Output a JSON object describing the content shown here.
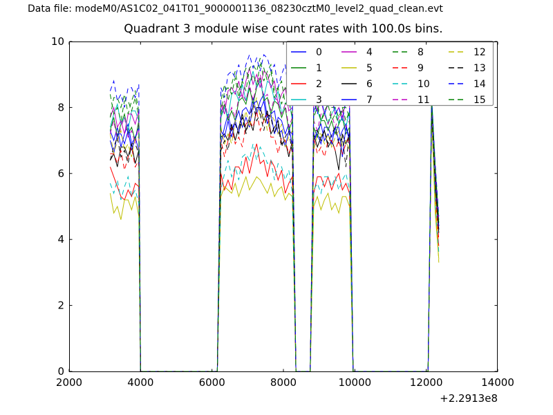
{
  "header": {
    "text": "Data file: modeM0/AS1C02_041T01_9000001136_08230cztM0_level2_quad_clean.evt"
  },
  "chart_data": {
    "type": "line",
    "title": "Quadrant 3 module wise count rates with 100.0s bins.",
    "xlabel": "",
    "ylabel": "",
    "xlim": [
      2000,
      14000
    ],
    "ylim": [
      0,
      10
    ],
    "xticks": [
      2000,
      4000,
      6000,
      8000,
      10000,
      12000,
      14000
    ],
    "yticks": [
      0,
      2,
      4,
      6,
      8,
      10
    ],
    "x_offset_label": "+2.2913e8",
    "grid": false,
    "legend": {
      "position": "upper right",
      "columns": 4
    },
    "x": [
      3150,
      3250,
      3350,
      3450,
      3550,
      3650,
      3750,
      3850,
      3950,
      4000,
      6150,
      6250,
      6350,
      6450,
      6550,
      6650,
      6750,
      6850,
      6950,
      7050,
      7150,
      7250,
      7350,
      7450,
      7550,
      7650,
      7750,
      7850,
      7950,
      8050,
      8150,
      8250,
      8350,
      8750,
      8850,
      8950,
      9050,
      9150,
      9250,
      9350,
      9450,
      9550,
      9650,
      9750,
      9850,
      9950,
      12050,
      12150,
      12250,
      12350
    ],
    "series": [
      {
        "name": "0",
        "color": "#0000ff",
        "style": "solid",
        "values": [
          7.3,
          7.0,
          7.4,
          6.8,
          7.2,
          7.5,
          6.9,
          7.1,
          6.7,
          0,
          0,
          6.9,
          7.4,
          7.8,
          7.3,
          7.6,
          7.2,
          7.9,
          8.0,
          7.8,
          8.3,
          7.8,
          8.2,
          8.4,
          7.7,
          7.8,
          7.2,
          7.7,
          7.6,
          7.2,
          7.5,
          6.8,
          0,
          0,
          7.0,
          7.2,
          6.9,
          7.4,
          7.4,
          7.1,
          7.4,
          7.0,
          7.3,
          7.5,
          7.0,
          0,
          0,
          8.0,
          5.8,
          4.4
        ]
      },
      {
        "name": "1",
        "color": "#008000",
        "style": "solid",
        "values": [
          7.3,
          7.7,
          7.1,
          7.5,
          7.8,
          7.2,
          7.4,
          7.0,
          7.6,
          0,
          0,
          7.7,
          8.1,
          7.6,
          7.9,
          7.6,
          8.2,
          8.3,
          8.1,
          8.6,
          8.1,
          8.6,
          8.9,
          8.2,
          8.3,
          7.8,
          8.2,
          8.1,
          7.7,
          8.0,
          7.3,
          7.6,
          0,
          0,
          7.4,
          7.1,
          7.6,
          7.6,
          7.3,
          7.6,
          7.2,
          7.5,
          7.7,
          7.2,
          7.4,
          0,
          0,
          8.2,
          6.0,
          4.5
        ]
      },
      {
        "name": "2",
        "color": "#ff0000",
        "style": "solid",
        "values": [
          6.2,
          5.9,
          5.6,
          5.3,
          5.2,
          5.5,
          5.3,
          5.7,
          5.6,
          0,
          0,
          6.0,
          5.5,
          5.8,
          5.5,
          6.2,
          6.2,
          6.0,
          6.5,
          6.0,
          6.5,
          6.9,
          6.3,
          6.4,
          5.9,
          6.4,
          6.2,
          5.8,
          6.1,
          5.4,
          5.7,
          5.9,
          0,
          0,
          5.4,
          5.9,
          5.9,
          5.6,
          5.9,
          5.5,
          5.8,
          6.0,
          5.5,
          5.7,
          5.4,
          0,
          0,
          7.9,
          5.0,
          3.8
        ]
      },
      {
        "name": "3",
        "color": "#00bfbf",
        "style": "solid",
        "values": [
          7.4,
          7.8,
          8.1,
          7.5,
          7.7,
          7.3,
          7.9,
          7.9,
          7.6,
          0,
          0,
          7.7,
          8.0,
          7.7,
          8.4,
          8.5,
          8.2,
          8.7,
          8.2,
          8.7,
          9.1,
          8.6,
          8.8,
          8.3,
          8.8,
          8.7,
          8.2,
          8.5,
          7.8,
          8.1,
          8.3,
          7.6,
          0,
          0,
          7.9,
          7.9,
          7.6,
          7.9,
          7.5,
          7.8,
          8.0,
          7.5,
          7.7,
          7.4,
          7.9,
          0,
          0,
          8.4,
          6.2,
          4.3
        ]
      },
      {
        "name": "4",
        "color": "#bf00bf",
        "style": "solid",
        "values": [
          7.7,
          8.0,
          7.4,
          7.6,
          7.2,
          7.8,
          7.8,
          7.5,
          7.9,
          0,
          0,
          8.1,
          7.8,
          8.5,
          8.6,
          8.4,
          8.8,
          8.3,
          8.8,
          9.2,
          8.7,
          9.0,
          8.6,
          9.1,
          9.0,
          8.6,
          8.8,
          8.1,
          8.4,
          8.6,
          7.9,
          8.0,
          0,
          0,
          8.2,
          7.9,
          8.2,
          7.8,
          8.1,
          8.3,
          7.8,
          8.0,
          7.7,
          8.2,
          8.2,
          0,
          0,
          8.1,
          6.1,
          4.6
        ]
      },
      {
        "name": "5",
        "color": "#bfbf00",
        "style": "solid",
        "values": [
          5.4,
          4.8,
          5.0,
          4.6,
          5.2,
          5.2,
          4.9,
          5.3,
          4.7,
          0,
          0,
          5.3,
          5.6,
          5.5,
          5.4,
          5.7,
          5.3,
          5.6,
          5.9,
          5.5,
          5.7,
          5.9,
          5.8,
          5.6,
          5.4,
          5.7,
          5.3,
          5.5,
          5.6,
          5.2,
          5.4,
          5.3,
          0,
          0,
          5.0,
          5.3,
          4.9,
          5.2,
          5.4,
          4.9,
          5.1,
          4.8,
          5.3,
          5.3,
          5.0,
          0,
          0,
          7.8,
          4.8,
          3.4
        ]
      },
      {
        "name": "6",
        "color": "#000000",
        "style": "solid",
        "values": [
          6.4,
          6.6,
          6.2,
          6.8,
          6.8,
          6.5,
          6.9,
          6.3,
          6.7,
          0,
          0,
          7.1,
          7.2,
          7.0,
          7.5,
          7.0,
          7.4,
          7.8,
          7.3,
          7.6,
          7.3,
          8.0,
          8.0,
          7.6,
          7.9,
          7.2,
          7.4,
          7.6,
          6.9,
          7.0,
          6.5,
          7.0,
          0,
          0,
          7.2,
          6.8,
          7.1,
          7.3,
          6.8,
          7.0,
          6.7,
          6.1,
          7.2,
          6.9,
          7.2,
          0,
          0,
          7.9,
          5.6,
          4.2
        ]
      },
      {
        "name": "7",
        "color": "#0000ff",
        "style": "solid",
        "values": [
          7.0,
          6.6,
          7.2,
          7.2,
          6.9,
          7.3,
          6.7,
          7.1,
          7.4,
          0,
          0,
          7.3,
          7.1,
          7.6,
          7.1,
          7.6,
          7.9,
          7.4,
          7.7,
          7.4,
          8.1,
          8.2,
          7.9,
          8.2,
          7.5,
          7.8,
          7.9,
          7.2,
          7.3,
          6.8,
          7.3,
          7.2,
          0,
          0,
          7.0,
          7.3,
          7.5,
          7.0,
          7.2,
          6.9,
          7.4,
          7.4,
          6.5,
          7.4,
          7.0,
          0,
          0,
          8.0,
          5.9,
          4.4
        ]
      },
      {
        "name": "8",
        "color": "#008000",
        "style": "dashed",
        "values": [
          7.7,
          8.3,
          8.3,
          8.0,
          8.4,
          7.8,
          8.2,
          8.5,
          7.9,
          0,
          0,
          8.2,
          8.7,
          8.2,
          8.7,
          9.1,
          8.5,
          8.8,
          8.5,
          9.2,
          9.3,
          9.1,
          9.5,
          8.8,
          9.1,
          9.3,
          8.5,
          8.6,
          8.1,
          8.6,
          8.5,
          8.1,
          0,
          0,
          7.9,
          8.1,
          7.6,
          7.8,
          7.5,
          8.0,
          8.0,
          7.7,
          8.0,
          7.6,
          7.9,
          0,
          0,
          8.3,
          6.2,
          4.6
        ]
      },
      {
        "name": "9",
        "color": "#ff0000",
        "style": "dashed",
        "values": [
          6.6,
          6.6,
          6.3,
          6.7,
          6.1,
          6.5,
          6.8,
          6.2,
          6.4,
          0,
          0,
          7.0,
          6.5,
          7.0,
          7.4,
          6.9,
          7.1,
          6.8,
          7.5,
          7.6,
          7.4,
          7.9,
          7.3,
          7.6,
          7.8,
          7.1,
          7.1,
          6.6,
          7.1,
          7.0,
          6.6,
          6.9,
          0,
          0,
          7.1,
          6.6,
          6.8,
          6.5,
          7.0,
          7.0,
          6.7,
          7.0,
          6.6,
          6.9,
          7.1,
          0,
          0,
          7.9,
          5.4,
          4.0
        ]
      },
      {
        "name": "10",
        "color": "#00bfbf",
        "style": "dashed",
        "values": [
          5.7,
          5.4,
          5.8,
          5.2,
          5.6,
          5.9,
          5.3,
          5.5,
          5.1,
          0,
          0,
          5.5,
          6.0,
          6.4,
          5.9,
          6.2,
          5.8,
          6.5,
          6.6,
          6.4,
          6.9,
          6.4,
          6.8,
          6.6,
          6.3,
          6.4,
          5.8,
          6.3,
          6.2,
          5.8,
          6.1,
          5.4,
          0,
          0,
          5.5,
          5.7,
          5.4,
          5.9,
          5.9,
          5.6,
          5.9,
          5.5,
          5.8,
          6.0,
          5.5,
          0,
          0,
          8.2,
          5.1,
          3.6
        ]
      },
      {
        "name": "11",
        "color": "#bf00bf",
        "style": "dashed",
        "values": [
          7.2,
          7.6,
          7.0,
          7.4,
          7.7,
          7.1,
          7.3,
          6.9,
          7.5,
          0,
          0,
          7.8,
          8.2,
          7.7,
          8.0,
          7.7,
          8.3,
          8.4,
          8.2,
          8.7,
          8.2,
          8.7,
          9.0,
          8.3,
          8.4,
          7.9,
          8.3,
          8.2,
          7.8,
          8.1,
          7.4,
          7.7,
          0,
          0,
          7.6,
          7.3,
          7.8,
          7.8,
          7.5,
          7.8,
          7.4,
          7.7,
          7.9,
          7.4,
          7.6,
          0,
          0,
          8.1,
          6.0,
          4.5
        ]
      },
      {
        "name": "12",
        "color": "#bfbf00",
        "style": "dashed",
        "values": [
          7.2,
          6.6,
          7.0,
          7.3,
          6.7,
          6.9,
          6.5,
          7.1,
          7.1,
          0,
          0,
          7.4,
          6.9,
          7.2,
          6.9,
          7.6,
          7.6,
          7.4,
          7.9,
          7.4,
          7.9,
          8.3,
          7.7,
          7.8,
          7.3,
          7.8,
          7.6,
          7.2,
          7.5,
          6.8,
          7.1,
          7.3,
          0,
          0,
          6.7,
          7.2,
          7.2,
          6.9,
          7.2,
          6.8,
          7.1,
          7.3,
          6.8,
          7.0,
          6.7,
          0,
          0,
          7.8,
          5.3,
          3.3
        ]
      },
      {
        "name": "13",
        "color": "#000000",
        "style": "dashed",
        "values": [
          6.4,
          6.8,
          7.1,
          6.5,
          6.7,
          6.3,
          6.9,
          6.9,
          6.6,
          0,
          0,
          6.7,
          7.0,
          6.7,
          7.4,
          7.5,
          7.2,
          7.7,
          7.2,
          7.7,
          8.1,
          7.6,
          7.8,
          7.3,
          7.8,
          7.7,
          7.2,
          7.5,
          6.8,
          7.1,
          7.3,
          6.6,
          0,
          0,
          7.3,
          7.3,
          7.0,
          7.3,
          6.9,
          7.2,
          7.4,
          6.9,
          7.1,
          6.2,
          7.3,
          0,
          0,
          7.9,
          5.7,
          4.3
        ]
      },
      {
        "name": "14",
        "color": "#0000ff",
        "style": "dashed",
        "values": [
          8.5,
          8.8,
          8.2,
          8.4,
          8.0,
          8.6,
          8.6,
          8.3,
          8.7,
          0,
          0,
          8.6,
          8.3,
          9.0,
          9.1,
          8.9,
          9.3,
          8.8,
          9.3,
          9.6,
          9.2,
          9.5,
          9.1,
          9.6,
          9.5,
          9.1,
          9.3,
          8.6,
          9.0,
          9.3,
          8.4,
          8.5,
          0,
          0,
          8.2,
          7.8,
          8.3,
          7.8,
          8.1,
          8.4,
          7.8,
          8.0,
          7.6,
          8.2,
          8.1,
          0,
          0,
          8.3,
          6.3,
          4.7
        ]
      },
      {
        "name": "15",
        "color": "#008000",
        "style": "dashed",
        "values": [
          8.4,
          7.8,
          8.0,
          7.6,
          8.2,
          8.2,
          7.9,
          8.3,
          7.7,
          0,
          0,
          7.8,
          8.5,
          8.6,
          8.4,
          8.9,
          8.3,
          8.8,
          9.2,
          8.7,
          9.0,
          8.7,
          9.3,
          9.2,
          8.8,
          9.1,
          8.3,
          8.6,
          8.8,
          8.1,
          8.2,
          7.7,
          0,
          0,
          7.7,
          8.0,
          7.6,
          7.9,
          8.1,
          7.6,
          7.8,
          7.5,
          8.0,
          8.0,
          7.7,
          0,
          0,
          8.2,
          6.1,
          4.5
        ]
      }
    ]
  }
}
